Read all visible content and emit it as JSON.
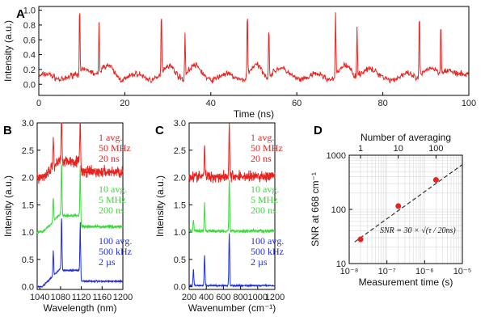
{
  "colors": {
    "red": "#e8231f",
    "green": "#3cd83c",
    "blue": "#1f2fd8",
    "axis": "#000000",
    "dot": "#e8231f"
  },
  "chart_data": [
    {
      "panel": "A",
      "type": "line",
      "xlabel": "Time (ns)",
      "ylabel": "Intensity (a.u.)",
      "xlim": [
        0,
        100
      ],
      "ylim": [
        -0.15,
        1.05
      ],
      "xticks": [
        "0",
        "20",
        "40",
        "60",
        "80",
        "100"
      ],
      "yticks": [
        "0.0",
        "0.2",
        "0.4",
        "0.6",
        "0.8",
        "1.0"
      ],
      "series": [
        {
          "name": "trace",
          "color": "red",
          "peaks": [
            [
              9.5,
              0.93
            ],
            [
              14,
              0.72
            ],
            [
              28.5,
              0.92
            ],
            [
              34,
              0.62
            ],
            [
              48.5,
              0.92
            ],
            [
              53.5,
              0.72
            ],
            [
              69,
              0.92
            ],
            [
              74,
              0.72
            ],
            [
              88.5,
              0.92
            ],
            [
              93.5,
              0.72
            ]
          ],
          "baseline": 0.1
        }
      ]
    },
    {
      "panel": "B",
      "type": "line",
      "xlabel": "Wavelength (nm)",
      "ylabel": "Intensity (a.u.)",
      "xlim": [
        1035,
        1200
      ],
      "ylim": [
        -0.05,
        3.0
      ],
      "xticks": [
        "1040",
        "1080",
        "1120",
        "1160",
        "1200"
      ],
      "yticks": [
        "0.0",
        "0.5",
        "1.0",
        "1.5",
        "2.0",
        "2.5",
        "3.0"
      ],
      "series": [
        {
          "name": "1 avg. 50 MHz 20 ns",
          "color": "red",
          "offset": 2.0,
          "peaks": [
            [
              1082,
              0.95
            ],
            [
              1118,
              0.95
            ],
            [
              1066,
              0.55
            ]
          ]
        },
        {
          "name": "10 avg. 5 MHz 200 ns",
          "color": "green",
          "offset": 1.0,
          "peaks": [
            [
              1082,
              0.95
            ],
            [
              1118,
              0.95
            ],
            [
              1066,
              0.45
            ]
          ]
        },
        {
          "name": "100 avg. 500 kHz 2 µs",
          "color": "blue",
          "offset": 0.0,
          "peaks": [
            [
              1082,
              0.95
            ],
            [
              1118,
              0.88
            ],
            [
              1066,
              0.45
            ]
          ]
        }
      ],
      "annotations": [
        {
          "color": "red",
          "lines": [
            "1 avg.",
            "50 MHz",
            "20 ns"
          ]
        },
        {
          "color": "green",
          "lines": [
            "10 avg.",
            "5 MHz",
            "200 ns"
          ]
        },
        {
          "color": "blue",
          "lines": [
            "100 avg.",
            "500 kHz",
            "2 µs"
          ]
        }
      ]
    },
    {
      "panel": "C",
      "type": "line",
      "xlabel": "Wavenumber (cm⁻¹)",
      "ylabel": "Intensity (a.u.)",
      "xlim": [
        200,
        1200
      ],
      "ylim": [
        -0.05,
        3.0
      ],
      "xticks": [
        "200",
        "400",
        "600",
        "800",
        "1000",
        "1200"
      ],
      "yticks": [
        "0.0",
        "0.5",
        "1.0",
        "1.5",
        "2.0",
        "2.5",
        "3.0"
      ],
      "series": [
        {
          "name": "1 avg. 50 MHz 20 ns",
          "color": "red",
          "offset": 2.0,
          "peaks": [
            [
              380,
              0.55
            ],
            [
              668,
              0.95
            ]
          ]
        },
        {
          "name": "10 avg. 5 MHz 200 ns",
          "color": "green",
          "offset": 1.0,
          "peaks": [
            [
              250,
              0.2
            ],
            [
              380,
              0.5
            ],
            [
              668,
              0.95
            ]
          ]
        },
        {
          "name": "100 avg. 500 kHz 2 µs",
          "color": "blue",
          "offset": 0.0,
          "peaks": [
            [
              250,
              0.3
            ],
            [
              380,
              0.55
            ],
            [
              668,
              0.95
            ]
          ]
        }
      ],
      "annotations": [
        {
          "color": "red",
          "lines": [
            "1 avg.",
            "50 MHz",
            "20 ns"
          ]
        },
        {
          "color": "green",
          "lines": [
            "10 avg.",
            "5 MHz",
            "200 ns"
          ]
        },
        {
          "color": "blue",
          "lines": [
            "100 avg.",
            "500 kHz",
            "2 µs"
          ]
        }
      ]
    },
    {
      "panel": "D",
      "type": "scatter",
      "xlabel": "Measurement time (s)",
      "ylabel": "SNR at 668 cm⁻¹",
      "top_xlabel": "Number of averaging",
      "xscale": "log",
      "yscale": "log",
      "xlim": [
        1e-08,
        1e-05
      ],
      "ylim": [
        10,
        1000
      ],
      "xticks": [
        "10⁻⁸",
        "10⁻⁷",
        "10⁻⁶",
        "10⁻⁵"
      ],
      "yticks": [
        "10",
        "100",
        "1000"
      ],
      "top_ticks": [
        "1",
        "10",
        "100"
      ],
      "points": [
        {
          "x": 2e-08,
          "y": 28
        },
        {
          "x": 2e-07,
          "y": 115
        },
        {
          "x": 2e-06,
          "y": 350
        }
      ],
      "fit": {
        "formula": "SNR = 30 × √(τ / 20ns)",
        "coef": 30
      }
    }
  ]
}
